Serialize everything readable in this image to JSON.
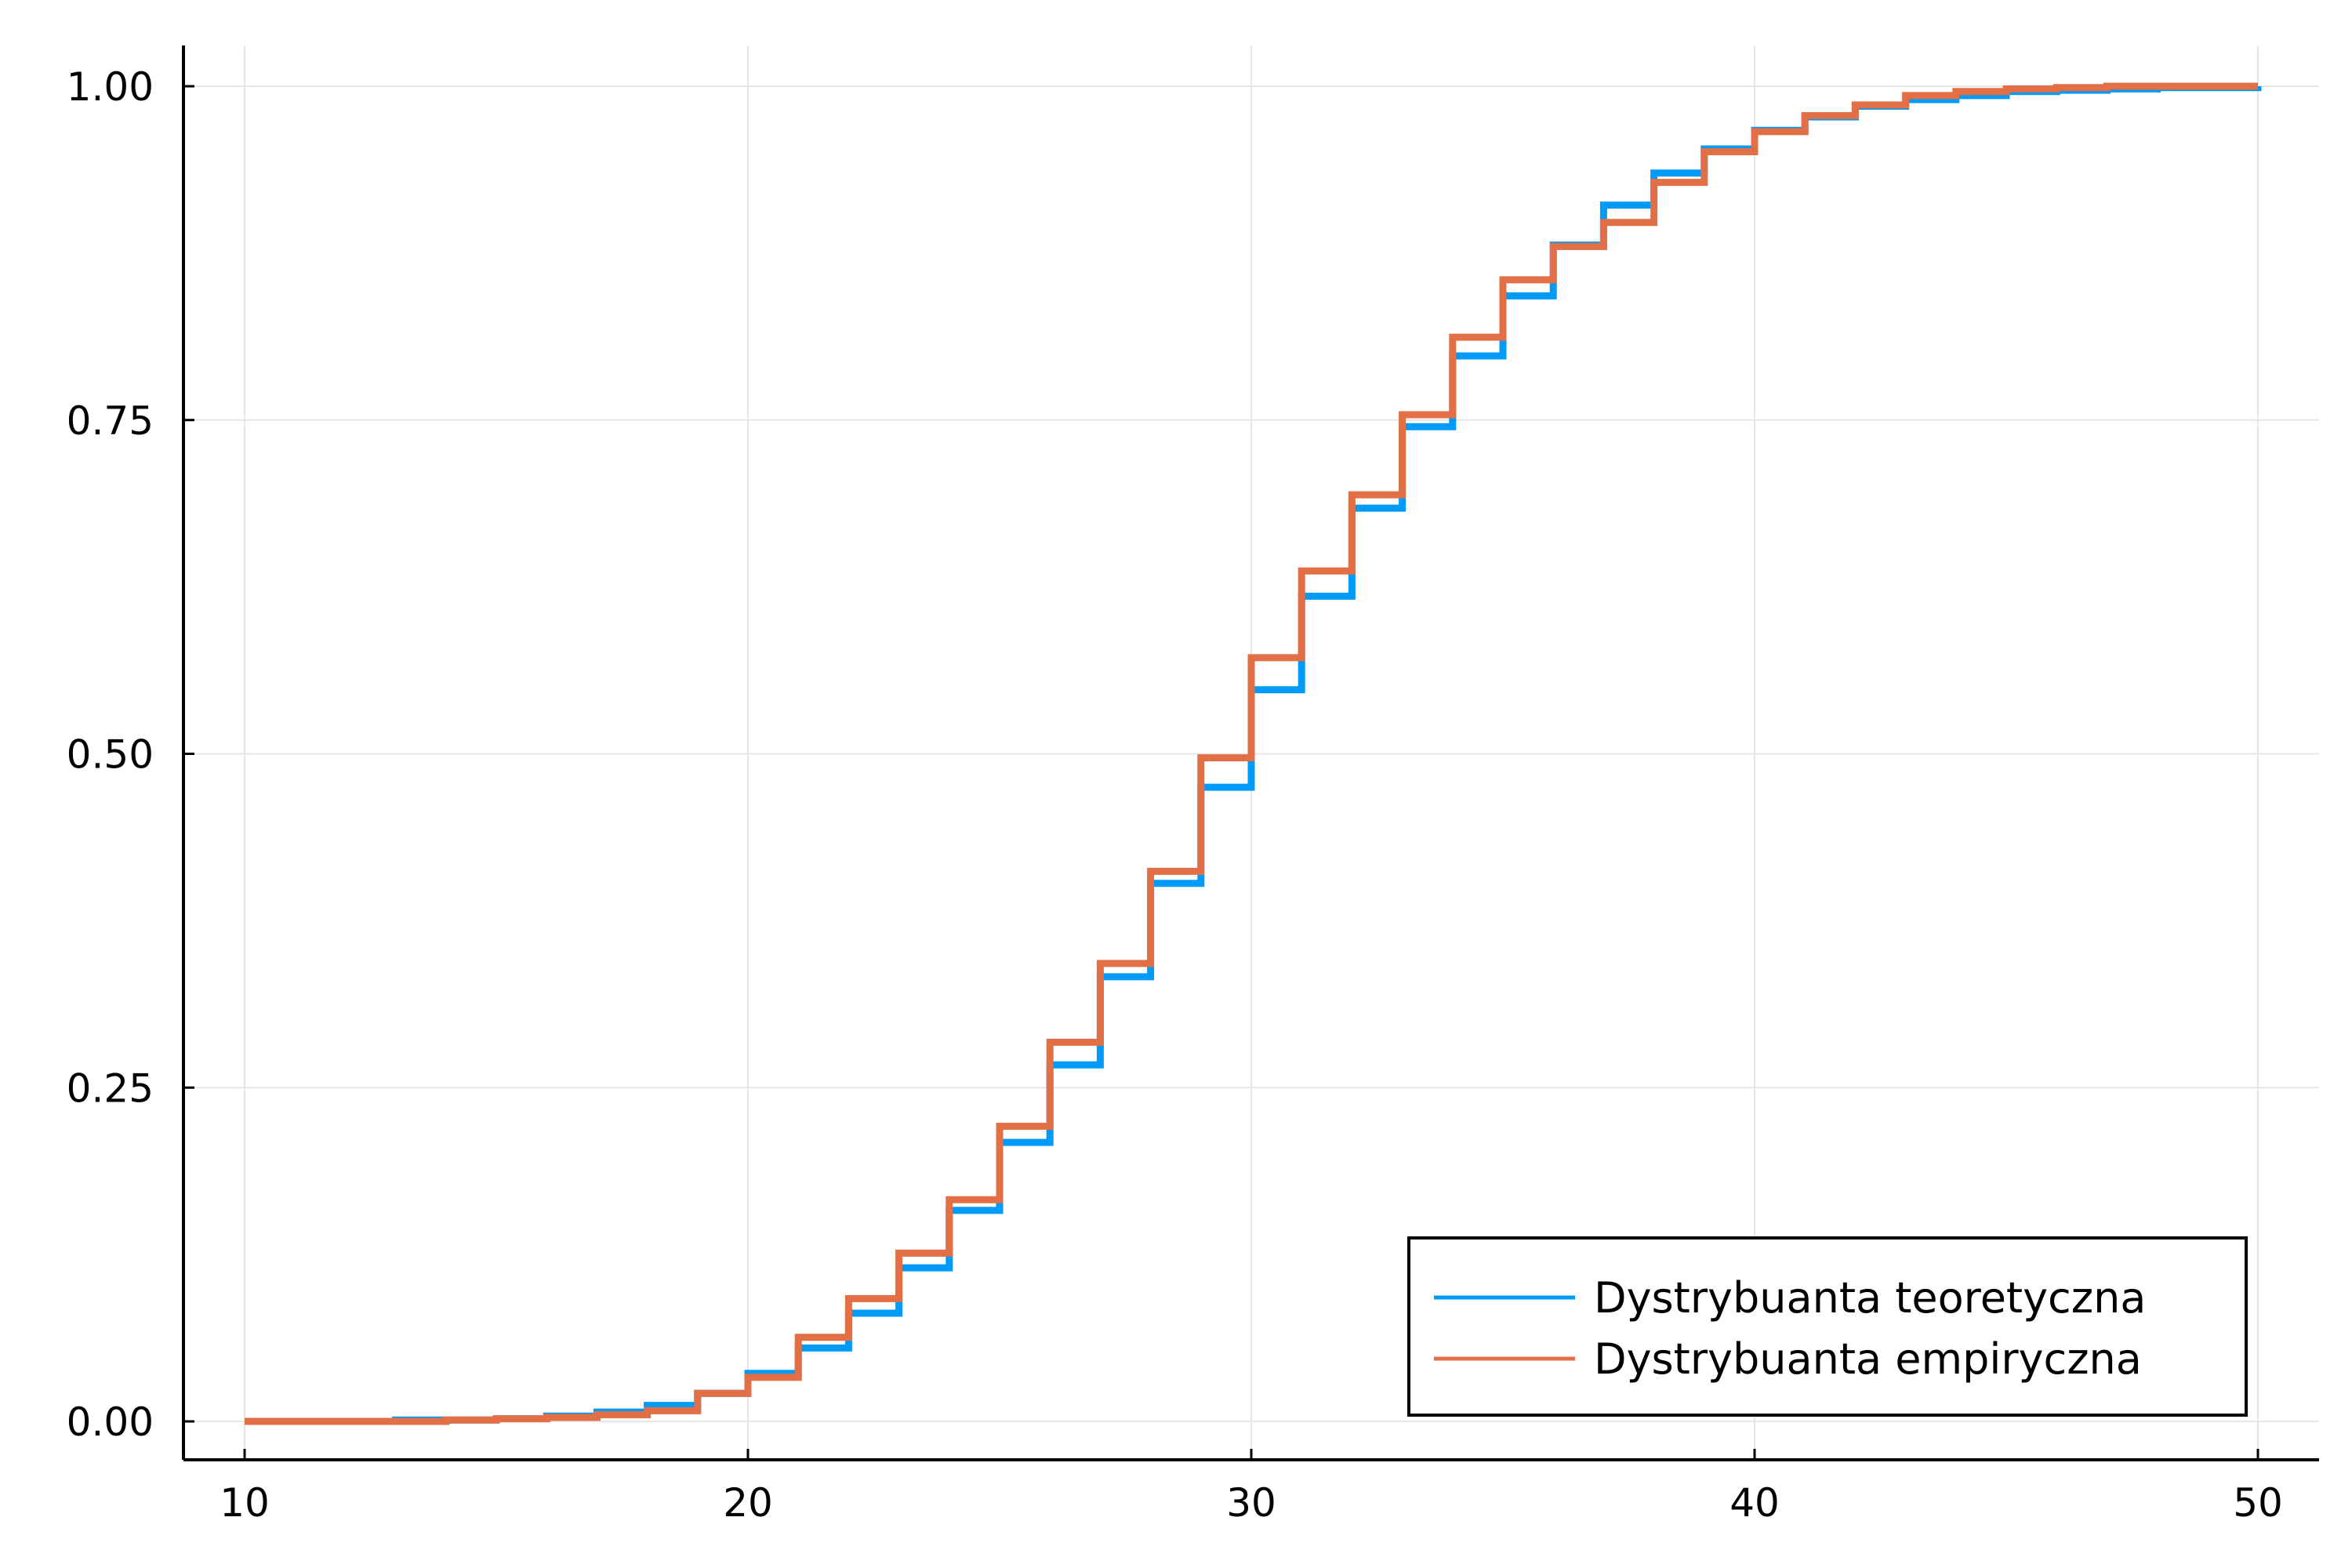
{
  "chart_data": {
    "type": "line",
    "step": "post",
    "xlim": [
      10,
      50
    ],
    "ylim": [
      0,
      1
    ],
    "xticks": [
      10,
      20,
      30,
      40,
      50
    ],
    "yticks": [
      0,
      0.25,
      0.5,
      0.75,
      1
    ],
    "xtick_labels": [
      "10",
      "20",
      "30",
      "40",
      "50"
    ],
    "ytick_labels": [
      "0.00",
      "0.25",
      "0.50",
      "0.75",
      "1.00"
    ],
    "grid": true,
    "legend_position": "bottom-right",
    "x": [
      10,
      11,
      12,
      13,
      14,
      15,
      16,
      17,
      18,
      19,
      20,
      21,
      22,
      23,
      24,
      25,
      26,
      27,
      28,
      29,
      30,
      31,
      32,
      33,
      34,
      35,
      36,
      37,
      38,
      39,
      40,
      41,
      42,
      43,
      44,
      45,
      46,
      47,
      48,
      49,
      50
    ],
    "series": [
      {
        "name": "Dystrybuanta teoretyczna",
        "color": "#009af9",
        "values": [
          0.0,
          0.0,
          0.0,
          0.001,
          0.001,
          0.002,
          0.004,
          0.007,
          0.012,
          0.021,
          0.036,
          0.055,
          0.081,
          0.115,
          0.158,
          0.209,
          0.267,
          0.333,
          0.403,
          0.475,
          0.548,
          0.618,
          0.684,
          0.745,
          0.798,
          0.843,
          0.881,
          0.911,
          0.935,
          0.953,
          0.967,
          0.977,
          0.985,
          0.99,
          0.993,
          0.996,
          0.997,
          0.998,
          0.999,
          0.999,
          1.0
        ]
      },
      {
        "name": "Dystrybuanta empiryczna",
        "color": "#e26f46",
        "values": [
          0.0,
          0.0,
          0.0,
          0.0,
          0.001,
          0.002,
          0.003,
          0.005,
          0.008,
          0.021,
          0.033,
          0.063,
          0.092,
          0.126,
          0.166,
          0.221,
          0.284,
          0.343,
          0.412,
          0.497,
          0.572,
          0.637,
          0.694,
          0.754,
          0.812,
          0.855,
          0.88,
          0.898,
          0.928,
          0.951,
          0.966,
          0.978,
          0.986,
          0.993,
          0.996,
          0.998,
          0.999,
          1.0,
          1.0,
          1.0,
          1.0
        ]
      }
    ]
  }
}
